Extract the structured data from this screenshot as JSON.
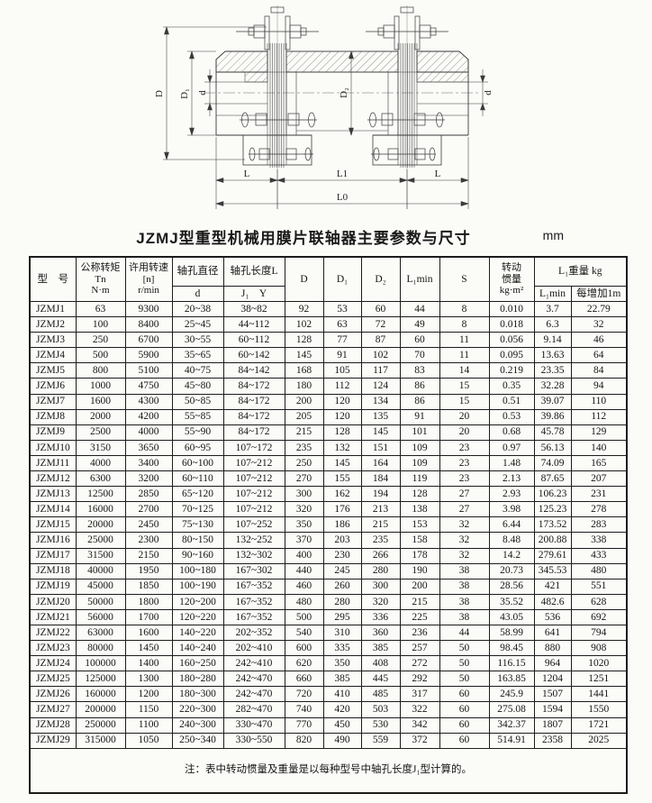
{
  "title": "JZMJ型重型机械用膜片联轴器主要参数与尺寸",
  "unit_label": "mm",
  "note": "注：表中转动惯量及重量是以每种型号中轴孔长度J₁型计算的。",
  "diagram": {
    "labels": {
      "D": "D",
      "D1": "D₁",
      "d_left": "d",
      "D2": "D₂",
      "d_right": "d",
      "L_left": "L",
      "L1": "L1",
      "L_right": "L",
      "L0": "L0"
    }
  },
  "table": {
    "headers": {
      "model": "型　号",
      "torque_line1": "公称转矩",
      "torque_line2": "Tn",
      "torque_line3": "N·m",
      "speed_line1": "许用转速",
      "speed_line2": "[n]",
      "speed_line3": "r/min",
      "bore_diameter": "轴孔直径",
      "bore_diameter_sub": "d",
      "bore_length": "轴孔长度L",
      "bore_length_sub": "J₁　Y",
      "D": "D",
      "D1": "D₁",
      "D2": "D₂",
      "L1min": "L₁min",
      "S": "S",
      "inertia_line1": "转动",
      "inertia_line2": "惯量",
      "inertia_line3": "kg·m²",
      "weight_group": "L₁重量 kg",
      "weight_sub1": "L₁min",
      "weight_sub2": "每增加1m"
    },
    "rows": [
      [
        "JZMJ1",
        "63",
        "9300",
        "20~38",
        "38~82",
        "92",
        "53",
        "60",
        "44",
        "8",
        "0.010",
        "3.7",
        "22.79"
      ],
      [
        "JZMJ2",
        "100",
        "8400",
        "25~45",
        "44~112",
        "102",
        "63",
        "72",
        "49",
        "8",
        "0.018",
        "6.3",
        "32"
      ],
      [
        "JZMJ3",
        "250",
        "6700",
        "30~55",
        "60~112",
        "128",
        "77",
        "87",
        "60",
        "11",
        "0.056",
        "9.14",
        "46"
      ],
      [
        "JZMJ4",
        "500",
        "5900",
        "35~65",
        "60~142",
        "145",
        "91",
        "102",
        "70",
        "11",
        "0.095",
        "13.63",
        "64"
      ],
      [
        "JZMJ5",
        "800",
        "5100",
        "40~75",
        "84~142",
        "168",
        "105",
        "117",
        "83",
        "14",
        "0.219",
        "23.35",
        "84"
      ],
      [
        "JZMJ6",
        "1000",
        "4750",
        "45~80",
        "84~172",
        "180",
        "112",
        "124",
        "86",
        "15",
        "0.35",
        "32.28",
        "94"
      ],
      [
        "JZMJ7",
        "1600",
        "4300",
        "50~85",
        "84~172",
        "200",
        "120",
        "134",
        "86",
        "15",
        "0.51",
        "39.07",
        "110"
      ],
      [
        "JZMJ8",
        "2000",
        "4200",
        "55~85",
        "84~172",
        "205",
        "120",
        "135",
        "91",
        "20",
        "0.53",
        "39.86",
        "112"
      ],
      [
        "JZMJ9",
        "2500",
        "4000",
        "55~90",
        "84~172",
        "215",
        "128",
        "145",
        "101",
        "20",
        "0.68",
        "45.78",
        "129"
      ],
      [
        "JZMJ10",
        "3150",
        "3650",
        "60~95",
        "107~172",
        "235",
        "132",
        "151",
        "109",
        "23",
        "0.97",
        "56.13",
        "140"
      ],
      [
        "JZMJ11",
        "4000",
        "3400",
        "60~100",
        "107~212",
        "250",
        "145",
        "164",
        "109",
        "23",
        "1.48",
        "74.09",
        "165"
      ],
      [
        "JZMJ12",
        "6300",
        "3200",
        "60~110",
        "107~212",
        "270",
        "155",
        "184",
        "119",
        "23",
        "2.13",
        "87.65",
        "207"
      ],
      [
        "JZMJ13",
        "12500",
        "2850",
        "65~120",
        "107~212",
        "300",
        "162",
        "194",
        "128",
        "27",
        "2.93",
        "106.23",
        "231"
      ],
      [
        "JZMJ14",
        "16000",
        "2700",
        "70~125",
        "107~212",
        "320",
        "176",
        "213",
        "138",
        "27",
        "3.98",
        "125.23",
        "278"
      ],
      [
        "JZMJ15",
        "20000",
        "2450",
        "75~130",
        "107~252",
        "350",
        "186",
        "215",
        "153",
        "32",
        "6.44",
        "173.52",
        "283"
      ],
      [
        "JZMJ16",
        "25000",
        "2300",
        "80~150",
        "132~252",
        "370",
        "203",
        "235",
        "158",
        "32",
        "8.48",
        "200.88",
        "338"
      ],
      [
        "JZMJ17",
        "31500",
        "2150",
        "90~160",
        "132~302",
        "400",
        "230",
        "266",
        "178",
        "32",
        "14.2",
        "279.61",
        "433"
      ],
      [
        "JZMJ18",
        "40000",
        "1950",
        "100~180",
        "167~302",
        "440",
        "245",
        "280",
        "190",
        "38",
        "20.73",
        "345.53",
        "480"
      ],
      [
        "JZMJ19",
        "45000",
        "1850",
        "100~190",
        "167~352",
        "460",
        "260",
        "300",
        "200",
        "38",
        "28.56",
        "421",
        "551"
      ],
      [
        "JZMJ20",
        "50000",
        "1800",
        "120~200",
        "167~352",
        "480",
        "280",
        "320",
        "215",
        "38",
        "35.52",
        "482.6",
        "628"
      ],
      [
        "JZMJ21",
        "56000",
        "1700",
        "120~220",
        "167~352",
        "500",
        "295",
        "336",
        "225",
        "38",
        "43.05",
        "536",
        "692"
      ],
      [
        "JZMJ22",
        "63000",
        "1600",
        "140~220",
        "202~352",
        "540",
        "310",
        "360",
        "236",
        "44",
        "58.99",
        "641",
        "794"
      ],
      [
        "JZMJ23",
        "80000",
        "1450",
        "140~240",
        "202~410",
        "600",
        "335",
        "385",
        "257",
        "50",
        "98.45",
        "880",
        "908"
      ],
      [
        "JZMJ24",
        "100000",
        "1400",
        "160~250",
        "242~410",
        "620",
        "350",
        "408",
        "272",
        "50",
        "116.15",
        "964",
        "1020"
      ],
      [
        "JZMJ25",
        "125000",
        "1300",
        "180~280",
        "242~470",
        "660",
        "385",
        "445",
        "292",
        "50",
        "163.85",
        "1204",
        "1251"
      ],
      [
        "JZMJ26",
        "160000",
        "1200",
        "180~300",
        "242~470",
        "720",
        "410",
        "485",
        "317",
        "60",
        "245.9",
        "1507",
        "1441"
      ],
      [
        "JZMJ27",
        "200000",
        "1150",
        "220~300",
        "282~470",
        "740",
        "420",
        "503",
        "322",
        "60",
        "275.08",
        "1594",
        "1550"
      ],
      [
        "JZMJ28",
        "250000",
        "1100",
        "240~300",
        "330~470",
        "770",
        "450",
        "530",
        "342",
        "60",
        "342.37",
        "1807",
        "1721"
      ],
      [
        "JZMJ29",
        "315000",
        "1050",
        "250~340",
        "330~550",
        "820",
        "490",
        "559",
        "372",
        "60",
        "514.91",
        "2358",
        "2025"
      ]
    ]
  }
}
